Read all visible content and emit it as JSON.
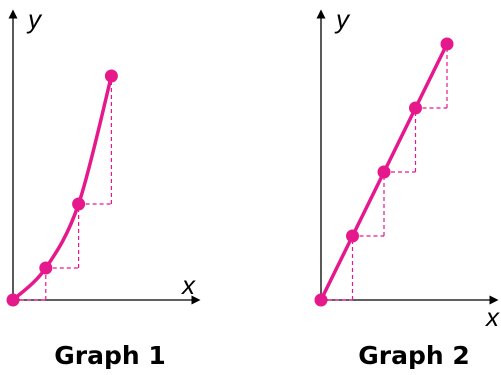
{
  "chart_data": [
    {
      "type": "line",
      "title": "Graph 1",
      "xlabel": "x",
      "ylabel": "y",
      "curve": "curved",
      "color": "#e6198c",
      "points": [
        {
          "x": 0,
          "y": 0
        },
        {
          "x": 1,
          "y": 1
        },
        {
          "x": 2,
          "y": 3
        },
        {
          "x": 3,
          "y": 7
        }
      ],
      "grid": false
    },
    {
      "type": "line",
      "title": "Graph 2",
      "xlabel": "x",
      "ylabel": "y",
      "curve": "straight",
      "color": "#e6198c",
      "points": [
        {
          "x": 0,
          "y": 0
        },
        {
          "x": 1,
          "y": 2
        },
        {
          "x": 2,
          "y": 4
        },
        {
          "x": 3,
          "y": 6
        },
        {
          "x": 4,
          "y": 8
        }
      ],
      "grid": false
    }
  ]
}
